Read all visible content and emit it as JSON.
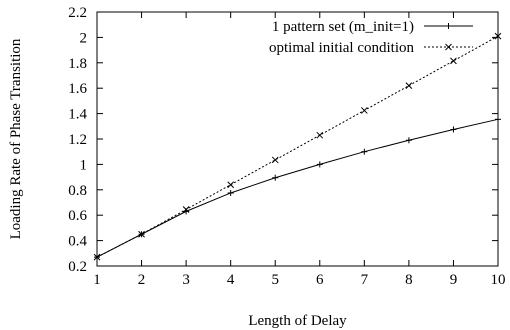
{
  "chart_data": {
    "type": "line",
    "title": "",
    "xlabel": "Length of Delay",
    "ylabel": "Loading Rate of Phase Transition",
    "xlim": [
      1,
      10
    ],
    "ylim": [
      0.2,
      2.2
    ],
    "x_ticks": [
      "1",
      "2",
      "3",
      "4",
      "5",
      "6",
      "7",
      "8",
      "9",
      "10"
    ],
    "y_ticks": [
      "0.2",
      "0.4",
      "0.6",
      "0.8",
      "1",
      "1.2",
      "1.4",
      "1.6",
      "1.8",
      "2",
      "2.2"
    ],
    "x": [
      1,
      2,
      3,
      4,
      5,
      6,
      7,
      8,
      9,
      10
    ],
    "series": [
      {
        "name": "1 pattern set (m_init=1)",
        "values": [
          0.27,
          0.45,
          0.63,
          0.775,
          0.895,
          1.0,
          1.1,
          1.19,
          1.275,
          1.355
        ],
        "line_style": "solid",
        "marker": "plus"
      },
      {
        "name": "optimal initial condition",
        "values": [
          0.27,
          0.45,
          0.645,
          0.84,
          1.035,
          1.23,
          1.425,
          1.62,
          1.815,
          2.01
        ],
        "line_style": "dotted",
        "marker": "cross"
      }
    ],
    "legend_position": "top-right",
    "grid": false
  }
}
